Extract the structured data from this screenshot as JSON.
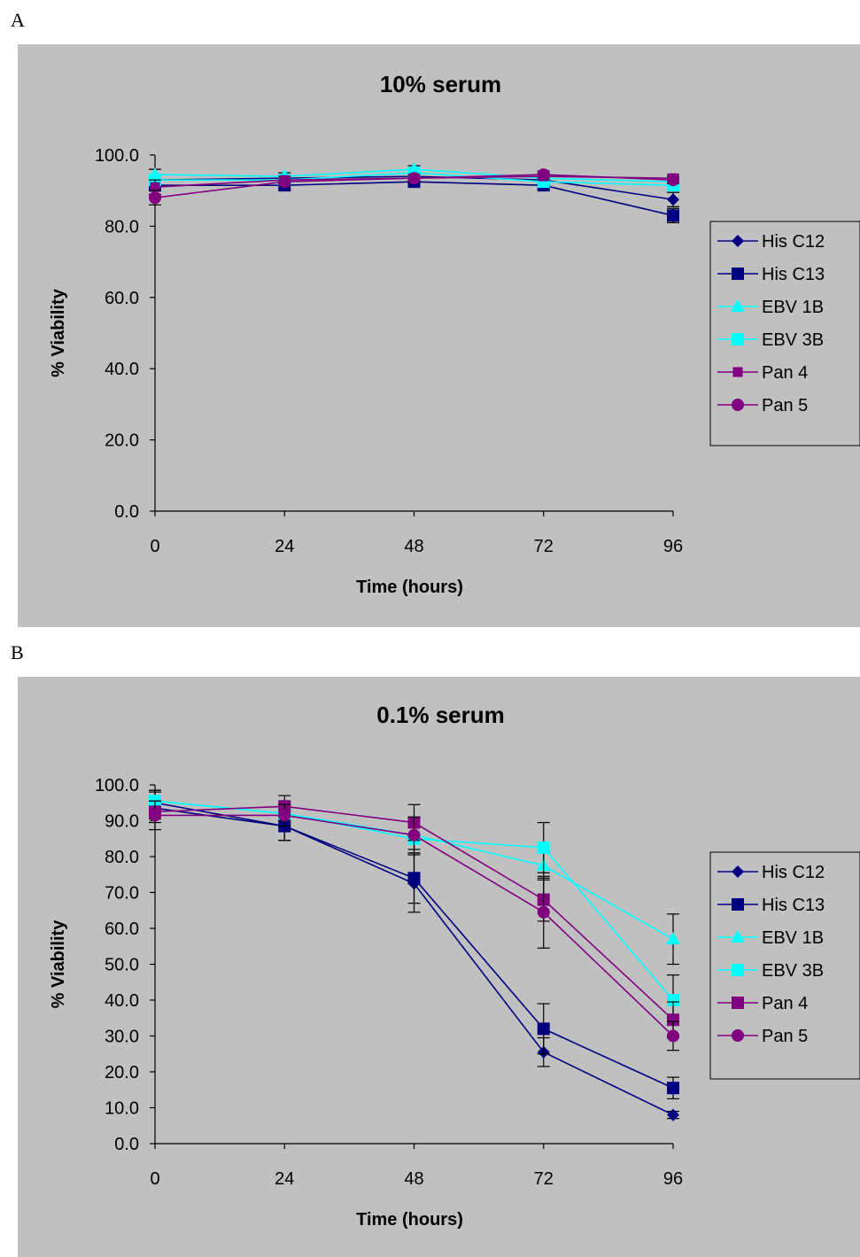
{
  "panels": [
    "A",
    "B"
  ],
  "chart_data": [
    {
      "type": "line",
      "title": "10% serum",
      "xlabel": "Time (hours)",
      "ylabel": "% Viability",
      "x": [
        0,
        24,
        48,
        72,
        96
      ],
      "x_ticks": [
        "0",
        "24",
        "48",
        "72",
        "96"
      ],
      "ylim": [
        0,
        100
      ],
      "y_ticks": [
        "0.0",
        "20.0",
        "40.0",
        "60.0",
        "80.0",
        "100.0"
      ],
      "y_tick_values": [
        0,
        20,
        40,
        60,
        80,
        100
      ],
      "legend_position": "right",
      "grid": false,
      "background": "#c0c0c0",
      "series": [
        {
          "name": "His C12",
          "color": "#000080",
          "marker": "diamond",
          "values": [
            93,
            93.5,
            94,
            93,
            87.5
          ],
          "error": [
            3,
            1,
            1,
            1,
            2
          ]
        },
        {
          "name": "His C13",
          "color": "#000080",
          "marker": "square",
          "values": [
            91.5,
            91.5,
            92.5,
            91.5,
            83
          ],
          "error": [
            3,
            1,
            1.5,
            1,
            2
          ]
        },
        {
          "name": "EBV 1B",
          "color": "#00ffff",
          "marker": "triangle",
          "values": [
            94.5,
            94,
            96,
            93.5,
            92.5
          ],
          "error": [
            1.5,
            1,
            1,
            1,
            1
          ]
        },
        {
          "name": "EBV 3B",
          "color": "#00ffff",
          "marker": "square",
          "values": [
            93,
            93,
            95,
            92.5,
            91.5
          ],
          "error": [
            1.5,
            1,
            1,
            1,
            1
          ]
        },
        {
          "name": "Pan 4",
          "color": "#800080",
          "marker": "square-small",
          "values": [
            91,
            93,
            93.5,
            94,
            93.5
          ],
          "error": [
            2,
            1,
            1,
            1,
            1
          ]
        },
        {
          "name": "Pan 5",
          "color": "#800080",
          "marker": "circle",
          "values": [
            88,
            92.5,
            93.5,
            94.5,
            93
          ],
          "error": [
            2,
            1,
            1,
            1,
            1
          ]
        }
      ]
    },
    {
      "type": "line",
      "title": "0.1% serum",
      "xlabel": "Time (hours)",
      "ylabel": "% Viability",
      "x": [
        0,
        24,
        48,
        72,
        96
      ],
      "x_ticks": [
        "0",
        "24",
        "48",
        "72",
        "96"
      ],
      "ylim": [
        0,
        100
      ],
      "y_ticks": [
        "0.0",
        "10.0",
        "20.0",
        "30.0",
        "40.0",
        "50.0",
        "60.0",
        "70.0",
        "80.0",
        "90.0",
        "100.0"
      ],
      "y_tick_values": [
        0,
        10,
        20,
        30,
        40,
        50,
        60,
        70,
        80,
        90,
        100
      ],
      "legend_position": "right",
      "grid": false,
      "background": "#c0c0c0",
      "series": [
        {
          "name": "His C12",
          "color": "#000080",
          "marker": "diamond",
          "values": [
            95,
            88.5,
            72.5,
            25.5,
            8
          ],
          "error": [
            3,
            4,
            8,
            4,
            1
          ]
        },
        {
          "name": "His C13",
          "color": "#000080",
          "marker": "square",
          "values": [
            93.5,
            88.5,
            74,
            32,
            15.5
          ],
          "error": [
            3,
            4,
            7,
            7,
            3
          ]
        },
        {
          "name": "EBV 1B",
          "color": "#00ffff",
          "marker": "triangle",
          "values": [
            95.5,
            92,
            86,
            77.5,
            57
          ],
          "error": [
            3,
            2,
            4,
            4,
            7
          ]
        },
        {
          "name": "EBV 3B",
          "color": "#00ffff",
          "marker": "square",
          "values": [
            95.5,
            92,
            85,
            82.5,
            40
          ],
          "error": [
            3,
            2,
            4,
            7,
            7
          ]
        },
        {
          "name": "Pan 4",
          "color": "#800080",
          "marker": "square",
          "values": [
            92.5,
            94,
            89.5,
            68,
            34.5
          ],
          "error": [
            3,
            3,
            5,
            6,
            5
          ]
        },
        {
          "name": "Pan 5",
          "color": "#800080",
          "marker": "circle",
          "values": [
            91.5,
            91.5,
            86,
            64.5,
            30
          ],
          "error": [
            4,
            3,
            5,
            10,
            4
          ]
        }
      ]
    }
  ]
}
